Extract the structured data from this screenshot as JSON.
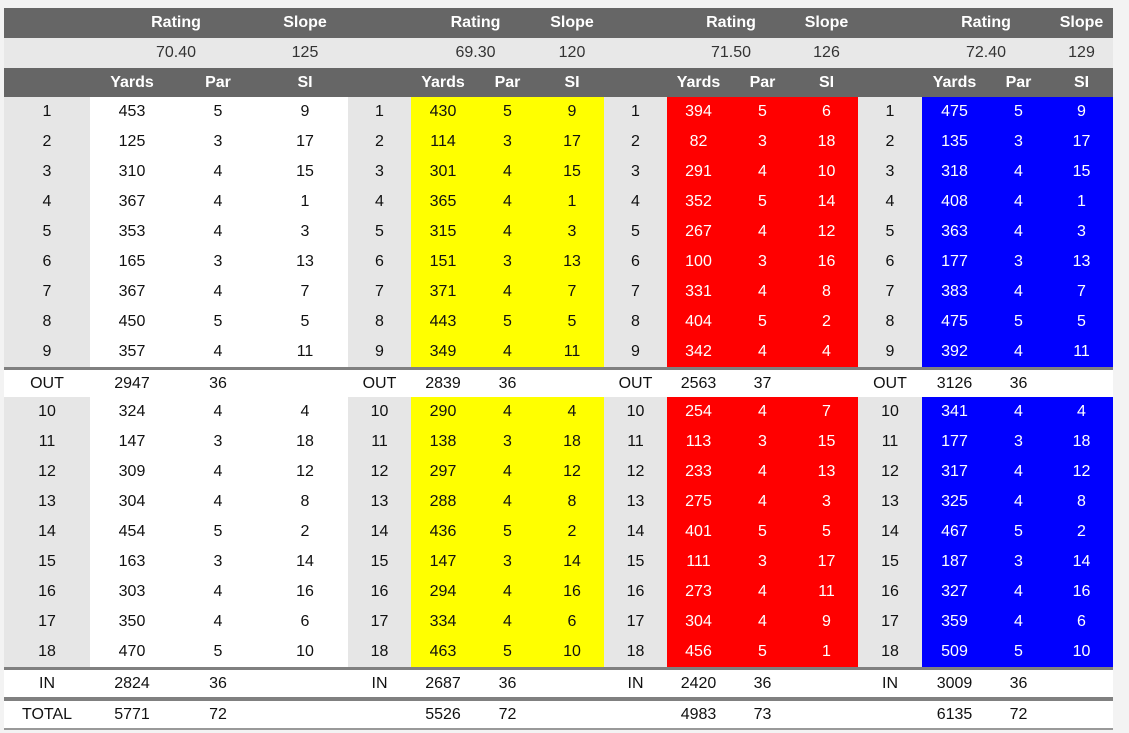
{
  "labels": {
    "rating": "Rating",
    "slope": "Slope",
    "yards": "Yards",
    "par": "Par",
    "si": "SI",
    "out": "OUT",
    "in": "IN",
    "total": "TOTAL"
  },
  "holes_front": [
    "1",
    "2",
    "3",
    "4",
    "5",
    "6",
    "7",
    "8",
    "9"
  ],
  "holes_back": [
    "10",
    "11",
    "12",
    "13",
    "14",
    "15",
    "16",
    "17",
    "18"
  ],
  "tees": [
    {
      "name": "white",
      "bg": "#ffffff",
      "fg": "#111111",
      "rating": "70.40",
      "slope": "125",
      "front": [
        [
          "453",
          "5",
          "9"
        ],
        [
          "125",
          "3",
          "17"
        ],
        [
          "310",
          "4",
          "15"
        ],
        [
          "367",
          "4",
          "1"
        ],
        [
          "353",
          "4",
          "3"
        ],
        [
          "165",
          "3",
          "13"
        ],
        [
          "367",
          "4",
          "7"
        ],
        [
          "450",
          "5",
          "5"
        ],
        [
          "357",
          "4",
          "11"
        ]
      ],
      "out": [
        "2947",
        "36"
      ],
      "back": [
        [
          "324",
          "4",
          "4"
        ],
        [
          "147",
          "3",
          "18"
        ],
        [
          "309",
          "4",
          "12"
        ],
        [
          "304",
          "4",
          "8"
        ],
        [
          "454",
          "5",
          "2"
        ],
        [
          "163",
          "3",
          "14"
        ],
        [
          "303",
          "4",
          "16"
        ],
        [
          "350",
          "4",
          "6"
        ],
        [
          "470",
          "5",
          "10"
        ]
      ],
      "in": [
        "2824",
        "36"
      ],
      "total": [
        "5771",
        "72"
      ]
    },
    {
      "name": "yellow",
      "bg": "#ffff00",
      "fg": "#111111",
      "rating": "69.30",
      "slope": "120",
      "front": [
        [
          "430",
          "5",
          "9"
        ],
        [
          "114",
          "3",
          "17"
        ],
        [
          "301",
          "4",
          "15"
        ],
        [
          "365",
          "4",
          "1"
        ],
        [
          "315",
          "4",
          "3"
        ],
        [
          "151",
          "3",
          "13"
        ],
        [
          "371",
          "4",
          "7"
        ],
        [
          "443",
          "5",
          "5"
        ],
        [
          "349",
          "4",
          "11"
        ]
      ],
      "out": [
        "2839",
        "36"
      ],
      "back": [
        [
          "290",
          "4",
          "4"
        ],
        [
          "138",
          "3",
          "18"
        ],
        [
          "297",
          "4",
          "12"
        ],
        [
          "288",
          "4",
          "8"
        ],
        [
          "436",
          "5",
          "2"
        ],
        [
          "147",
          "3",
          "14"
        ],
        [
          "294",
          "4",
          "16"
        ],
        [
          "334",
          "4",
          "6"
        ],
        [
          "463",
          "5",
          "10"
        ]
      ],
      "in": [
        "2687",
        "36"
      ],
      "total": [
        "5526",
        "72"
      ]
    },
    {
      "name": "red",
      "bg": "#ff0000",
      "fg": "#ffffff",
      "rating": "71.50",
      "slope": "126",
      "front": [
        [
          "394",
          "5",
          "6"
        ],
        [
          "82",
          "3",
          "18"
        ],
        [
          "291",
          "4",
          "10"
        ],
        [
          "352",
          "5",
          "14"
        ],
        [
          "267",
          "4",
          "12"
        ],
        [
          "100",
          "3",
          "16"
        ],
        [
          "331",
          "4",
          "8"
        ],
        [
          "404",
          "5",
          "2"
        ],
        [
          "342",
          "4",
          "4"
        ]
      ],
      "out": [
        "2563",
        "37"
      ],
      "back": [
        [
          "254",
          "4",
          "7"
        ],
        [
          "113",
          "3",
          "15"
        ],
        [
          "233",
          "4",
          "13"
        ],
        [
          "275",
          "4",
          "3"
        ],
        [
          "401",
          "5",
          "5"
        ],
        [
          "111",
          "3",
          "17"
        ],
        [
          "273",
          "4",
          "11"
        ],
        [
          "304",
          "4",
          "9"
        ],
        [
          "456",
          "5",
          "1"
        ]
      ],
      "in": [
        "2420",
        "36"
      ],
      "total": [
        "4983",
        "73"
      ]
    },
    {
      "name": "blue",
      "bg": "#0000ff",
      "fg": "#ffffff",
      "rating": "72.40",
      "slope": "129",
      "front": [
        [
          "475",
          "5",
          "9"
        ],
        [
          "135",
          "3",
          "17"
        ],
        [
          "318",
          "4",
          "15"
        ],
        [
          "408",
          "4",
          "1"
        ],
        [
          "363",
          "4",
          "3"
        ],
        [
          "177",
          "3",
          "13"
        ],
        [
          "383",
          "4",
          "7"
        ],
        [
          "475",
          "5",
          "5"
        ],
        [
          "392",
          "4",
          "11"
        ]
      ],
      "out": [
        "3126",
        "36"
      ],
      "back": [
        [
          "341",
          "4",
          "4"
        ],
        [
          "177",
          "3",
          "18"
        ],
        [
          "317",
          "4",
          "12"
        ],
        [
          "325",
          "4",
          "8"
        ],
        [
          "467",
          "5",
          "2"
        ],
        [
          "187",
          "3",
          "14"
        ],
        [
          "327",
          "4",
          "16"
        ],
        [
          "359",
          "4",
          "6"
        ],
        [
          "509",
          "5",
          "10"
        ]
      ],
      "in": [
        "3009",
        "36"
      ],
      "total": [
        "6135",
        "72"
      ]
    }
  ]
}
